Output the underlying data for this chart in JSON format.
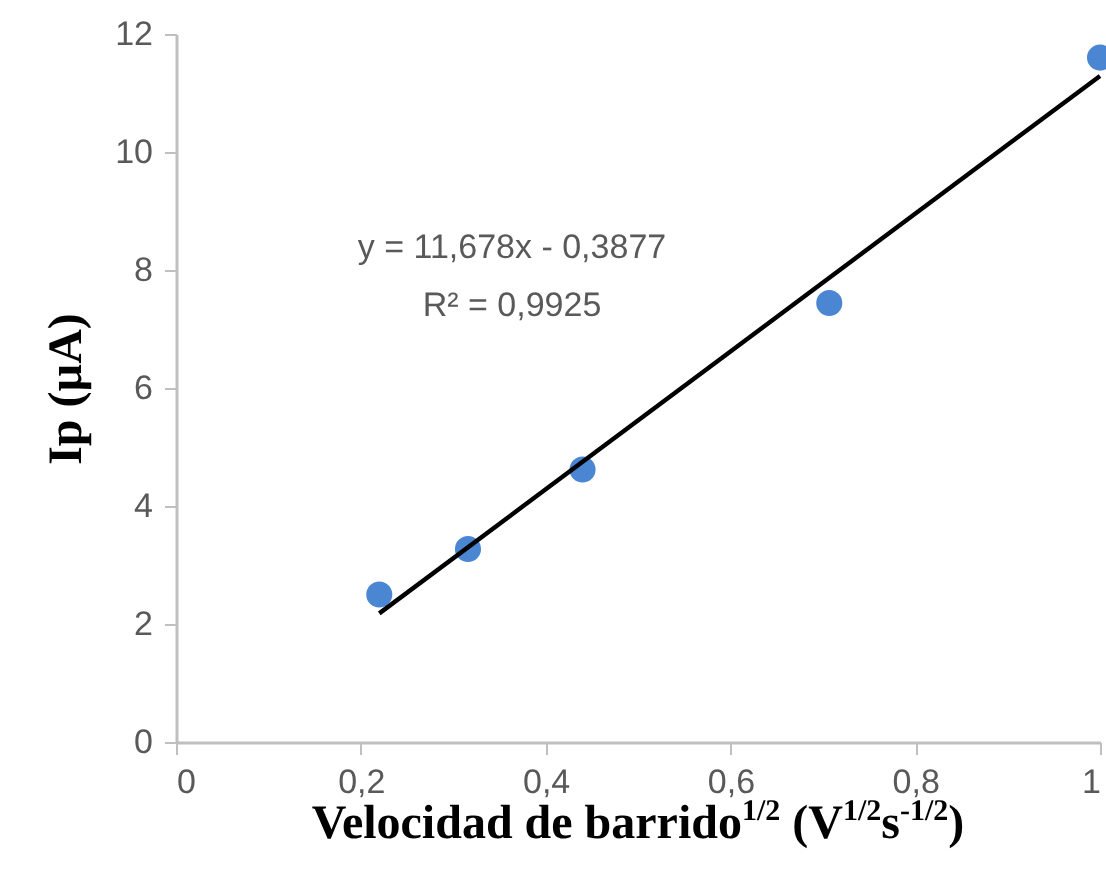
{
  "chart_data": {
    "type": "scatter",
    "xlabel": "Velocidad de barrido$^{1/2}$ (V$^{1/2}$s$^{-1/2}$)",
    "ylabel": "Ip (µA)",
    "xlim": [
      0,
      1
    ],
    "xticks": [
      0,
      {
        "value": 0.2,
        "label": "0,2"
      },
      {
        "value": 0.4,
        "label": "0,4"
      },
      {
        "value": 0.6,
        "label": "0,6"
      },
      {
        "value": 0.8,
        "label": "0,8"
      },
      1
    ],
    "ylim": [
      0,
      12
    ],
    "yticks": [
      0,
      2,
      4,
      6,
      8,
      10,
      12
    ],
    "grid": false,
    "marker": "circle",
    "series": [
      {
        "color": "#4a86d2",
        "x": [
          0.22,
          0.316,
          0.44,
          0.707,
          1.0
        ],
        "values": [
          2.5,
          3.27,
          4.62,
          7.44,
          11.6
        ]
      },
      {
        "type": "line",
        "color": "#000000",
        "x": [
          0.22,
          1.0
        ],
        "values": [
          2.18,
          11.29
        ],
        "marker": "none",
        "line_style": "solid"
      }
    ],
    "annotations": [
      "y = 11,678x - 0,3877",
      "R² = 0,9925"
    ]
  }
}
